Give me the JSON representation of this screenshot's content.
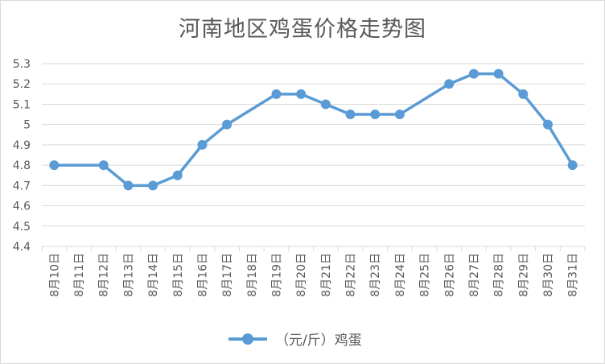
{
  "chart_data": {
    "type": "line",
    "title": "河南地区鸡蛋价格走势图",
    "categories": [
      "8月10日",
      "8月11日",
      "8月12日",
      "8月13日",
      "8月14日",
      "8月15日",
      "8月16日",
      "8月17日",
      "8月18日",
      "8月19日",
      "8月20日",
      "8月21日",
      "8月22日",
      "8月23日",
      "8月24日",
      "8月25日",
      "8月26日",
      "8月27日",
      "8月28日",
      "8月29日",
      "8月30日",
      "8月31日"
    ],
    "series": [
      {
        "name": "（元/斤）鸡蛋",
        "x": [
          "8月10日",
          "8月12日",
          "8月13日",
          "8月14日",
          "8月15日",
          "8月16日",
          "8月17日",
          "8月19日",
          "8月20日",
          "8月21日",
          "8月22日",
          "8月23日",
          "8月24日",
          "8月26日",
          "8月27日",
          "8月28日",
          "8月29日",
          "8月30日",
          "8月31日"
        ],
        "values": [
          4.8,
          4.8,
          4.7,
          4.7,
          4.75,
          4.9,
          5.0,
          5.15,
          5.15,
          5.1,
          5.05,
          5.05,
          5.05,
          5.2,
          5.25,
          5.25,
          5.15,
          5.0,
          4.8
        ]
      }
    ],
    "yticks": [
      "4.4",
      "4.5",
      "4.6",
      "4.7",
      "4.8",
      "4.9",
      "5",
      "5.1",
      "5.2",
      "5.3"
    ],
    "ylim": [
      4.4,
      5.3
    ],
    "grid": true,
    "legend": "bottom",
    "color": "#5b9bd5"
  }
}
